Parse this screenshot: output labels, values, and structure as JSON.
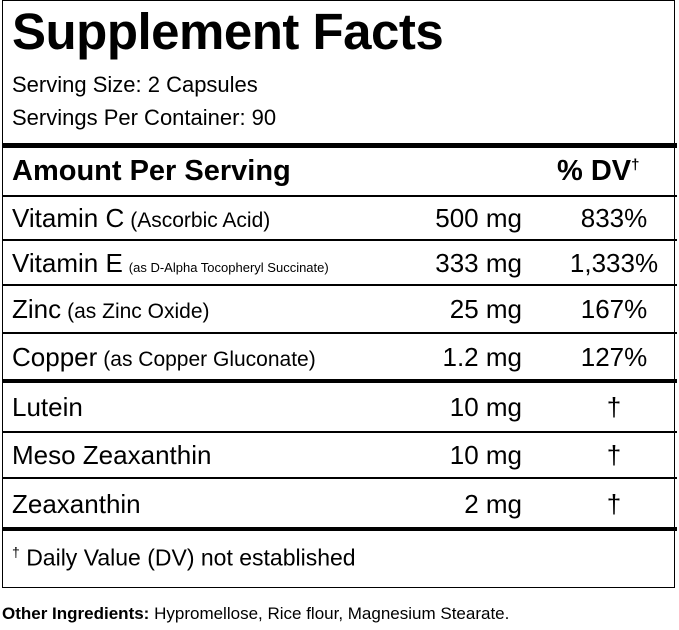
{
  "title": "Supplement Facts",
  "serving_size": "Serving Size: 2 Capsules",
  "servings_per_container": "Servings Per Container: 90",
  "header": {
    "amount": "Amount Per Serving",
    "dv": "% DV",
    "dv_mark": "†"
  },
  "rows": [
    {
      "name": "Vitamin C",
      "detail": "(Ascorbic Acid)",
      "amount": "500 mg",
      "dv": "833%"
    },
    {
      "name": "Vitamin E",
      "detail": "(as D-Alpha Tocopheryl Succinate)",
      "amount": "333 mg",
      "dv": "1,333%"
    },
    {
      "name": "Zinc",
      "detail": "(as Zinc Oxide)",
      "amount": "25 mg",
      "dv": "167%"
    },
    {
      "name": "Copper",
      "detail": "(as Copper Gluconate)",
      "amount": "1.2 mg",
      "dv": "127%"
    },
    {
      "name": "Lutein",
      "amount": "10 mg",
      "dv": "†"
    },
    {
      "name": "Meso Zeaxanthin",
      "amount": "10 mg",
      "dv": "†"
    },
    {
      "name": "Zeaxanthin",
      "amount": "2 mg",
      "dv": "†"
    }
  ],
  "footnote": {
    "mark": "†",
    "text": "Daily Value (DV) not established"
  },
  "other_ingredients": {
    "label": "Other Ingredients:",
    "text": "Hypromellose, Rice flour, Magnesium Stearate."
  }
}
